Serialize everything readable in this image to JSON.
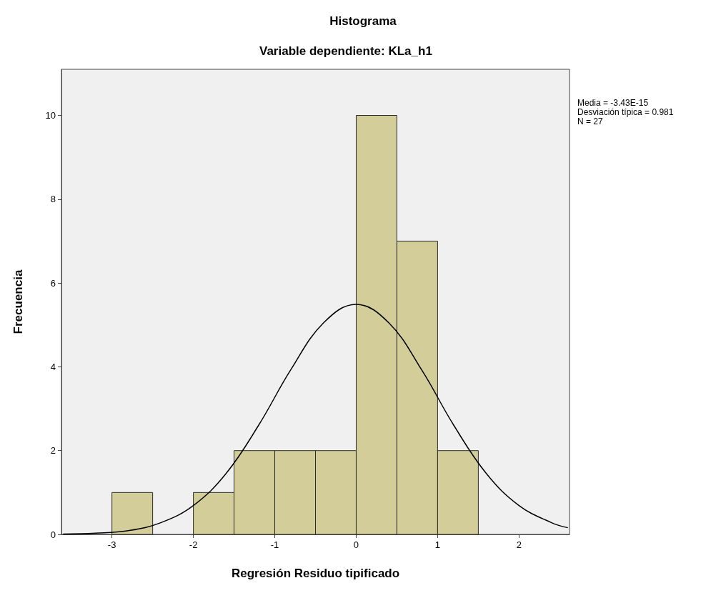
{
  "chart_data": {
    "type": "histogram",
    "title": "Histograma",
    "subtitle": "Variable dependiente: KLa_h1",
    "xlabel": "Regresión Residuo tipificado",
    "ylabel": "Frecuencia",
    "bins": [
      -3,
      -2.5,
      -2,
      -1.5,
      -1,
      -0.5,
      0,
      0.5,
      1,
      1.5
    ],
    "values": [
      1,
      0,
      1,
      2,
      2,
      2,
      10,
      7,
      2
    ],
    "color": "#d3ce99",
    "xlim": [
      -3.62,
      2.62
    ],
    "xticks": [
      -3,
      -2,
      -1,
      0,
      1,
      2
    ],
    "ylim": [
      0,
      11.1
    ],
    "yticks": [
      0,
      2,
      4,
      6,
      8,
      10
    ],
    "grid": false,
    "annotations": [
      "Media = -3.43E-15",
      "Desviación típica = 0.981",
      "N = 27"
    ],
    "series": [
      {
        "type": "line",
        "color": "#000000",
        "x": [
          -3.6,
          -3.2,
          -2.8,
          -2.4,
          -2.0,
          -1.6,
          -1.2,
          -0.8,
          -0.4,
          0,
          0.4,
          0.8,
          1.2,
          1.6,
          2.0,
          2.4,
          2.6
        ],
        "values": [
          0.01,
          0.03,
          0.09,
          0.28,
          0.69,
          1.45,
          2.6,
          3.94,
          5.05,
          5.49,
          5.05,
          3.94,
          2.6,
          1.45,
          0.69,
          0.28,
          0.16
        ]
      }
    ]
  }
}
